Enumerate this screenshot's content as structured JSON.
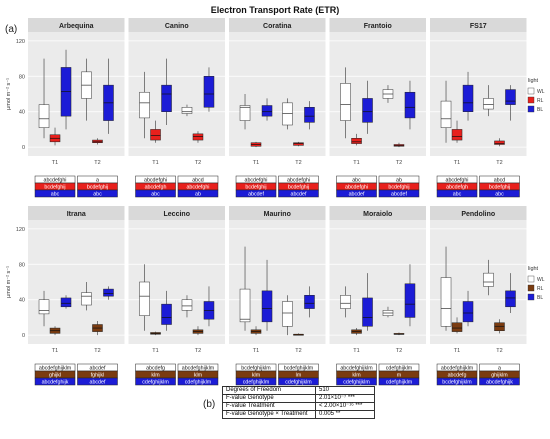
{
  "title": "Electron Transport Rate (ETR)",
  "panel_a_label": "(a)",
  "panel_b_label": "(b)",
  "ylabel": "µmol m⁻² s⁻¹",
  "legend_title": "light",
  "legend_items": [
    {
      "label": "WL",
      "color": "#ffffff"
    },
    {
      "label": "RL",
      "color": "#e8201c"
    },
    {
      "label": "BL",
      "color": "#1c1cd6"
    }
  ],
  "colors": {
    "WL": "#ffffff",
    "RL": "#e8201c",
    "BL": "#1c1cd6",
    "RL_row2": "#7a3b10"
  },
  "chart_data": {
    "type": "boxplot",
    "categories_x": [
      "T1",
      "T2"
    ],
    "yticks": [
      0,
      40,
      80,
      120
    ],
    "ylim": [
      -10,
      130
    ],
    "grid": true,
    "legend_position": "right",
    "facets": [
      {
        "name": "Arbequina",
        "groups": {
          "T1": {
            "WL": [
              10,
              22,
              32,
              48,
              100
            ],
            "RL": [
              2,
              6,
              10,
              14,
              22
            ],
            "BL": [
              20,
              35,
              63,
              90,
              110
            ]
          },
          "T2": {
            "WL": [
              30,
              55,
              70,
              85,
              100
            ],
            "RL": [
              3,
              5,
              6,
              8,
              10
            ],
            "BL": [
              15,
              30,
              50,
              70,
              100
            ]
          }
        }
      },
      {
        "name": "Canino",
        "groups": {
          "T1": {
            "WL": [
              10,
              33,
              50,
              62,
              85
            ],
            "RL": [
              5,
              8,
              13,
              20,
              30
            ],
            "BL": [
              25,
              40,
              60,
              70,
              100
            ]
          },
          "T2": {
            "WL": [
              35,
              38,
              40,
              45,
              48
            ],
            "RL": [
              5,
              8,
              12,
              15,
              18
            ],
            "BL": [
              40,
              45,
              60,
              80,
              90
            ]
          }
        }
      },
      {
        "name": "Coratina",
        "groups": {
          "T1": {
            "WL": [
              20,
              30,
              45,
              47,
              60
            ],
            "RL": [
              0,
              1,
              3,
              5,
              6
            ],
            "BL": [
              30,
              35,
              40,
              47,
              55
            ]
          },
          "T2": {
            "WL": [
              20,
              25,
              38,
              50,
              55
            ],
            "RL": [
              1,
              2,
              4,
              5,
              6
            ],
            "BL": [
              20,
              28,
              35,
              45,
              52
            ]
          }
        }
      },
      {
        "name": "Frantoio",
        "groups": {
          "T1": {
            "WL": [
              10,
              30,
              48,
              72,
              90
            ],
            "RL": [
              2,
              4,
              6,
              10,
              15
            ],
            "BL": [
              15,
              28,
              40,
              55,
              75
            ]
          },
          "T2": {
            "WL": [
              50,
              55,
              60,
              65,
              70
            ],
            "RL": [
              0,
              1,
              2,
              3,
              5
            ],
            "BL": [
              20,
              33,
              45,
              62,
              75
            ]
          }
        }
      },
      {
        "name": "FS17",
        "groups": {
          "T1": {
            "WL": [
              5,
              22,
              32,
              52,
              75
            ],
            "RL": [
              5,
              8,
              12,
              20,
              30
            ],
            "BL": [
              30,
              40,
              50,
              70,
              85
            ]
          },
          "T2": {
            "WL": [
              35,
              43,
              48,
              55,
              70
            ],
            "RL": [
              1,
              3,
              4,
              7,
              10
            ],
            "BL": [
              30,
              48,
              52,
              65,
              70
            ]
          }
        }
      },
      {
        "name": "Itrana",
        "groups": {
          "T1": {
            "WL": [
              10,
              24,
              28,
              40,
              50
            ],
            "RL": [
              0,
              2,
              5,
              8,
              10
            ],
            "BL": [
              30,
              32,
              36,
              42,
              45
            ]
          },
          "T2": {
            "WL": [
              28,
              34,
              44,
              48,
              60
            ],
            "RL": [
              0,
              4,
              8,
              12,
              16
            ],
            "BL": [
              40,
              44,
              47,
              52,
              55
            ]
          }
        }
      },
      {
        "name": "Leccino",
        "groups": {
          "T1": {
            "WL": [
              5,
              22,
              44,
              60,
              80
            ],
            "RL": [
              0,
              1,
              2,
              3,
              4
            ],
            "BL": [
              5,
              12,
              20,
              35,
              50
            ]
          },
          "T2": {
            "WL": [
              20,
              28,
              33,
              40,
              45
            ],
            "RL": [
              0,
              2,
              4,
              6,
              10
            ],
            "BL": [
              10,
              18,
              28,
              38,
              55
            ]
          }
        }
      },
      {
        "name": "Maurino",
        "groups": {
          "T1": {
            "WL": [
              5,
              15,
              18,
              52,
              100
            ],
            "RL": [
              0,
              2,
              4,
              6,
              10
            ],
            "BL": [
              5,
              15,
              30,
              50,
              85
            ]
          },
          "T2": {
            "WL": [
              0,
              10,
              25,
              38,
              45
            ],
            "RL": [
              0,
              0,
              1,
              1,
              2
            ],
            "BL": [
              20,
              30,
              36,
              45,
              55
            ]
          }
        }
      },
      {
        "name": "Moraiolo",
        "groups": {
          "T1": {
            "WL": [
              20,
              30,
              36,
              45,
              55
            ],
            "RL": [
              0,
              2,
              4,
              6,
              8
            ],
            "BL": [
              5,
              10,
              20,
              42,
              70
            ]
          },
          "T2": {
            "WL": [
              20,
              22,
              25,
              28,
              32
            ],
            "RL": [
              0,
              1,
              1,
              2,
              3
            ],
            "BL": [
              10,
              20,
              35,
              58,
              80
            ]
          }
        }
      },
      {
        "name": "Pendolino",
        "groups": {
          "T1": {
            "WL": [
              5,
              10,
              30,
              65,
              100
            ],
            "RL": [
              2,
              4,
              8,
              14,
              20
            ],
            "BL": [
              10,
              15,
              25,
              38,
              50
            ]
          },
          "T2": {
            "WL": [
              45,
              55,
              60,
              70,
              85
            ],
            "RL": [
              2,
              5,
              10,
              14,
              18
            ],
            "BL": [
              25,
              32,
              42,
              50,
              70
            ]
          }
        }
      }
    ],
    "significance": [
      {
        "facet": "Arbequina",
        "T1": [
          "abcdefghi",
          "bcdefghij",
          "abc"
        ],
        "T2": [
          "a",
          "bcdefghij",
          "abc"
        ]
      },
      {
        "facet": "Canino",
        "T1": [
          "abcdefghi",
          "abcdefgh",
          "abc"
        ],
        "T2": [
          "abcd",
          "abcdefghi",
          "ab"
        ]
      },
      {
        "facet": "Coratina",
        "T1": [
          "abcdefghi",
          "bcdefghij",
          "abcdef"
        ],
        "T2": [
          "abcdefghi",
          "bcdefghij",
          "abcdef"
        ]
      },
      {
        "facet": "Frantoio",
        "T1": [
          "abc",
          "abcdefghi",
          "abcdef"
        ],
        "T2": [
          "ab",
          "bcdefghij",
          "abcdef"
        ]
      },
      {
        "facet": "FS17",
        "T1": [
          "abcdefghi",
          "abcdefgh",
          "abc"
        ],
        "T2": [
          "abcd",
          "bcdefghij",
          "abc"
        ]
      },
      {
        "facet": "Itrana",
        "T1": [
          "abcdefghijklm",
          "ghijkl",
          "abcdefghijk"
        ],
        "T2": [
          "abcdef",
          "fghijkl",
          "abcdef"
        ]
      },
      {
        "facet": "Leccino",
        "T1": [
          "abcdefg",
          "klm",
          "cdefghijklm"
        ],
        "T2": [
          "abcdefghijklm",
          "klm",
          "cdefghijklm"
        ]
      },
      {
        "facet": "Maurino",
        "T1": [
          "bcdefghijklm",
          "klm",
          "cdefghijklm"
        ],
        "T2": [
          "bcdefghijklm",
          "lm",
          "cdefghijklm"
        ]
      },
      {
        "facet": "Moraiolo",
        "T1": [
          "abcdefghijklm",
          "klm",
          "cdefghijklm"
        ],
        "T2": [
          "cdefghijklm",
          "m",
          "cdefghijklm"
        ]
      },
      {
        "facet": "Pendolino",
        "T1": [
          "abcdefghijklm",
          "abcdefg",
          "bcdefghijklm"
        ],
        "T2": [
          "a",
          "ghijklm",
          "abcdefghijk"
        ]
      }
    ]
  },
  "stats_table": [
    {
      "label": "Degrees of Freedom",
      "value": "510"
    },
    {
      "label": "F-value Genotype",
      "value": "2.01×10⁻⁷ ***"
    },
    {
      "label": "F-value Treatment",
      "value": "< 2.00×10⁻¹⁶ ***"
    },
    {
      "label": "F-value Genotype × Treatment",
      "value": "0.005 **"
    }
  ]
}
